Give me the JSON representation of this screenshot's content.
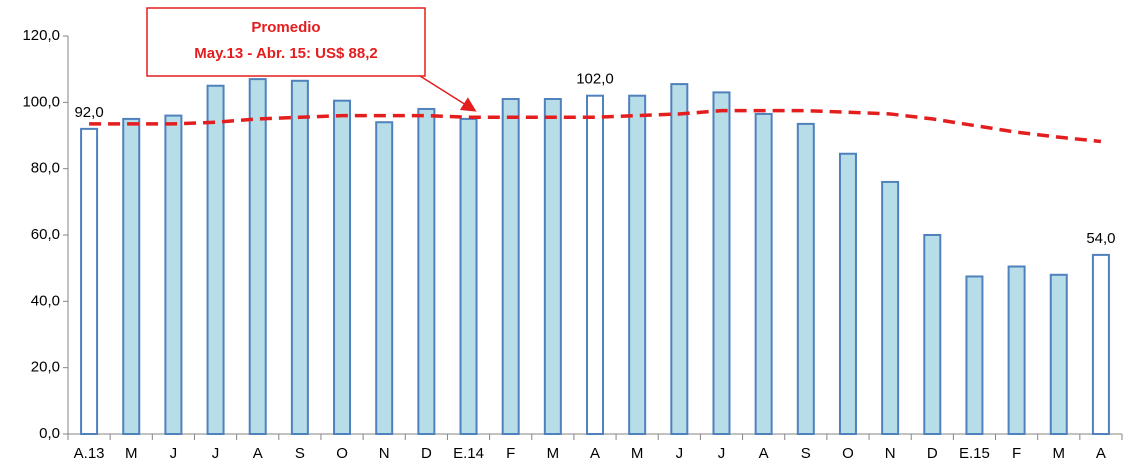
{
  "chart_data": {
    "type": "bar",
    "categories": [
      "A.13",
      "M",
      "J",
      "J",
      "A",
      "S",
      "O",
      "N",
      "D",
      "E.14",
      "F",
      "M",
      "A",
      "M",
      "J",
      "J",
      "A",
      "S",
      "O",
      "N",
      "D",
      "E.15",
      "F",
      "M",
      "A"
    ],
    "values": [
      92.0,
      95,
      96,
      105,
      107,
      106.5,
      100.5,
      94,
      98,
      95,
      101,
      101,
      102.0,
      102,
      105.5,
      103,
      96.5,
      93.5,
      84.5,
      76,
      60,
      47.5,
      50.5,
      48,
      54.0
    ],
    "value_labels": [
      "92,0",
      null,
      null,
      null,
      null,
      null,
      null,
      null,
      null,
      null,
      null,
      null,
      "102,0",
      null,
      null,
      null,
      null,
      null,
      null,
      null,
      null,
      null,
      null,
      null,
      "54,0"
    ],
    "colors": [
      "#ffffff",
      "#b7dde8",
      "#b7dde8",
      "#b7dde8",
      "#b7dde8",
      "#b7dde8",
      "#b7dde8",
      "#b7dde8",
      "#b7dde8",
      "#b7dde8",
      "#b7dde8",
      "#b7dde8",
      "#ffffff",
      "#b7dde8",
      "#b7dde8",
      "#b7dde8",
      "#b7dde8",
      "#b7dde8",
      "#b7dde8",
      "#b7dde8",
      "#b7dde8",
      "#b7dde8",
      "#b7dde8",
      "#b7dde8",
      "#ffffff"
    ],
    "border_color": "#4f81bd",
    "overlay": {
      "type": "line",
      "color": "#e41e1e",
      "dashed": true,
      "values": [
        93.5,
        93.5,
        93.5,
        94,
        95,
        95.5,
        96,
        96,
        96,
        95.5,
        95.5,
        95.5,
        95.5,
        96,
        96.5,
        97.5,
        97.5,
        97.5,
        97,
        96.5,
        95,
        93,
        91,
        89.5,
        88.2
      ]
    },
    "annotation": [
      "Promedio",
      "May.13 - Abr. 15: US$ 88,2"
    ],
    "ylim": [
      0,
      120
    ],
    "yticks": [
      {
        "value": 0,
        "label": "0,0"
      },
      {
        "value": 20,
        "label": "20,0"
      },
      {
        "value": 40,
        "label": "40,0"
      },
      {
        "value": 60,
        "label": "60,0"
      },
      {
        "value": 80,
        "label": "80,0"
      },
      {
        "value": 100,
        "label": "100,0"
      },
      {
        "value": 120,
        "label": "120,0"
      }
    ],
    "grid": false
  }
}
